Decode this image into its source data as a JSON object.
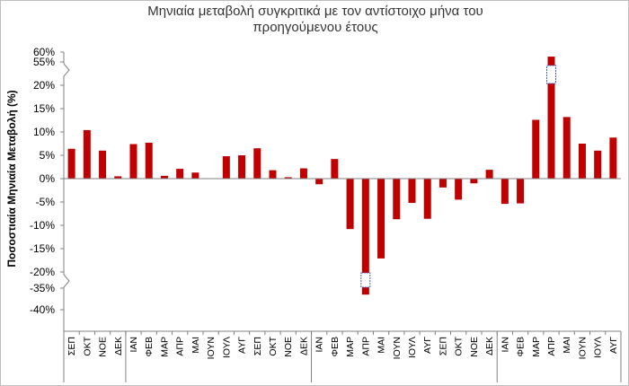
{
  "chart_data": {
    "type": "bar",
    "title_line1": "Μηνιαία μεταβολή συγκριτικά με τον αντίστοιχο μήνα του",
    "title_line2": "προηγούμενου έτους",
    "ylabel": "Ποσοστιαία Μηνιαία Μεταβολή (%)",
    "xlabel": "",
    "ytick_labels": [
      "60%",
      "55%",
      "20%",
      "15%",
      "10%",
      "5%",
      "0%",
      "-5%",
      "-10%",
      "-15%",
      "-20%",
      "-35%",
      "-40%"
    ],
    "axis_break": {
      "upper": [
        20,
        55
      ],
      "lower": [
        -35,
        -20
      ]
    },
    "ylim": [
      -40,
      60
    ],
    "grid": false,
    "legend": "none",
    "categories": [
      "ΣΕΠ",
      "ΟΚΤ",
      "ΝΟΕ",
      "ΔΕΚ",
      "ΙΑΝ",
      "ΦΕΒ",
      "ΜΑΡ",
      "ΑΠΡ",
      "ΜΑΙ",
      "ΙΟΥΝ",
      "ΙΟΥΛ",
      "ΑΥΓ",
      "ΣΕΠ",
      "ΟΚΤ",
      "ΝΟΕ",
      "ΔΕΚ",
      "ΙΑΝ",
      "ΦΕΒ",
      "ΜΑΡ",
      "ΑΠΡ",
      "ΜΑΙ",
      "ΙΟΥΝ",
      "ΙΟΥΛ",
      "ΑΥΓ",
      "ΣΕΠ",
      "ΟΚΤ",
      "ΝΟΕ",
      "ΔΕΚ",
      "ΙΑΝ",
      "ΦΕΒ",
      "ΜΑΡ",
      "ΑΠΡ",
      "ΜΑΙ",
      "ΙΟΥΝ",
      "ΙΟΥΛ",
      "ΑΥΓ"
    ],
    "values": [
      6.4,
      10.4,
      6.0,
      0.5,
      7.4,
      7.7,
      0.6,
      2.1,
      1.3,
      0.0,
      4.8,
      5.0,
      6.5,
      1.8,
      0.3,
      2.2,
      -1.2,
      4.2,
      -10.8,
      -36.5,
      -17.1,
      -8.7,
      -5.2,
      -8.6,
      -1.9,
      -4.5,
      -1.0,
      1.9,
      -5.4,
      -5.3,
      12.6,
      57.7,
      13.2,
      7.5,
      6.0,
      8.8
    ],
    "bar_color": "#c00000"
  }
}
